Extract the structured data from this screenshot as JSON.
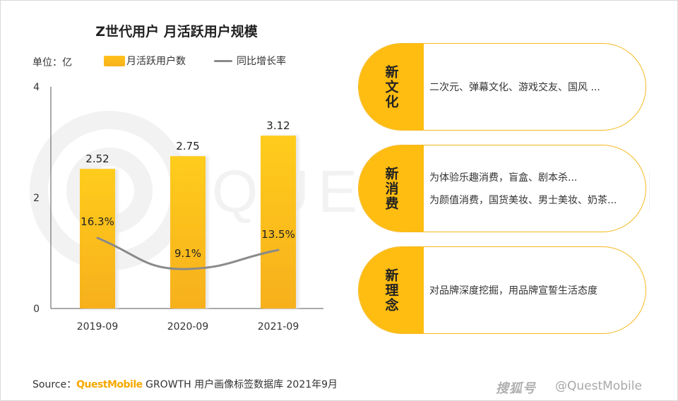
{
  "chart_data": {
    "type": "bar",
    "title": "Z世代用户 月活跃用户规模",
    "unit_label": "单位：亿",
    "categories": [
      "2019-09",
      "2020-09",
      "2021-09"
    ],
    "series": [
      {
        "name": "月活跃用户数",
        "type": "bar",
        "values": [
          2.52,
          2.75,
          3.12
        ],
        "labels": [
          "2.52",
          "2.75",
          "3.12"
        ],
        "color": "#ffc21a"
      },
      {
        "name": "同比增长率",
        "type": "line",
        "values": [
          16.3,
          9.1,
          13.5
        ],
        "labels": [
          "16.3%",
          "9.1%",
          "13.5%"
        ],
        "color": "#8a8a8a"
      }
    ],
    "y_ticks": [
      "0",
      "2",
      "4"
    ],
    "ylim": [
      0,
      4
    ],
    "grid": false,
    "legend": "top"
  },
  "panels": [
    {
      "tab": "新文化",
      "lines": [
        "二次元、弹幕文化、游戏交友、国风 ..."
      ]
    },
    {
      "tab": "新消费",
      "lines": [
        "为体验乐趣消费，盲盒、剧本杀...",
        "为颜值消费，国货美妆、男士美妆、奶茶..."
      ]
    },
    {
      "tab": "新理念",
      "lines": [
        "对品牌深度挖掘，用品牌宣誓生活态度"
      ]
    }
  ],
  "source": {
    "prefix": "Source：",
    "brand": "QuestMobile",
    "text": " GROWTH 用户画像标签数据库 2021年9月"
  },
  "footer": {
    "logo_text": "搜狐号",
    "handle": "@QuestMobile"
  },
  "watermark": {
    "text": "QUESTMOBILE"
  }
}
